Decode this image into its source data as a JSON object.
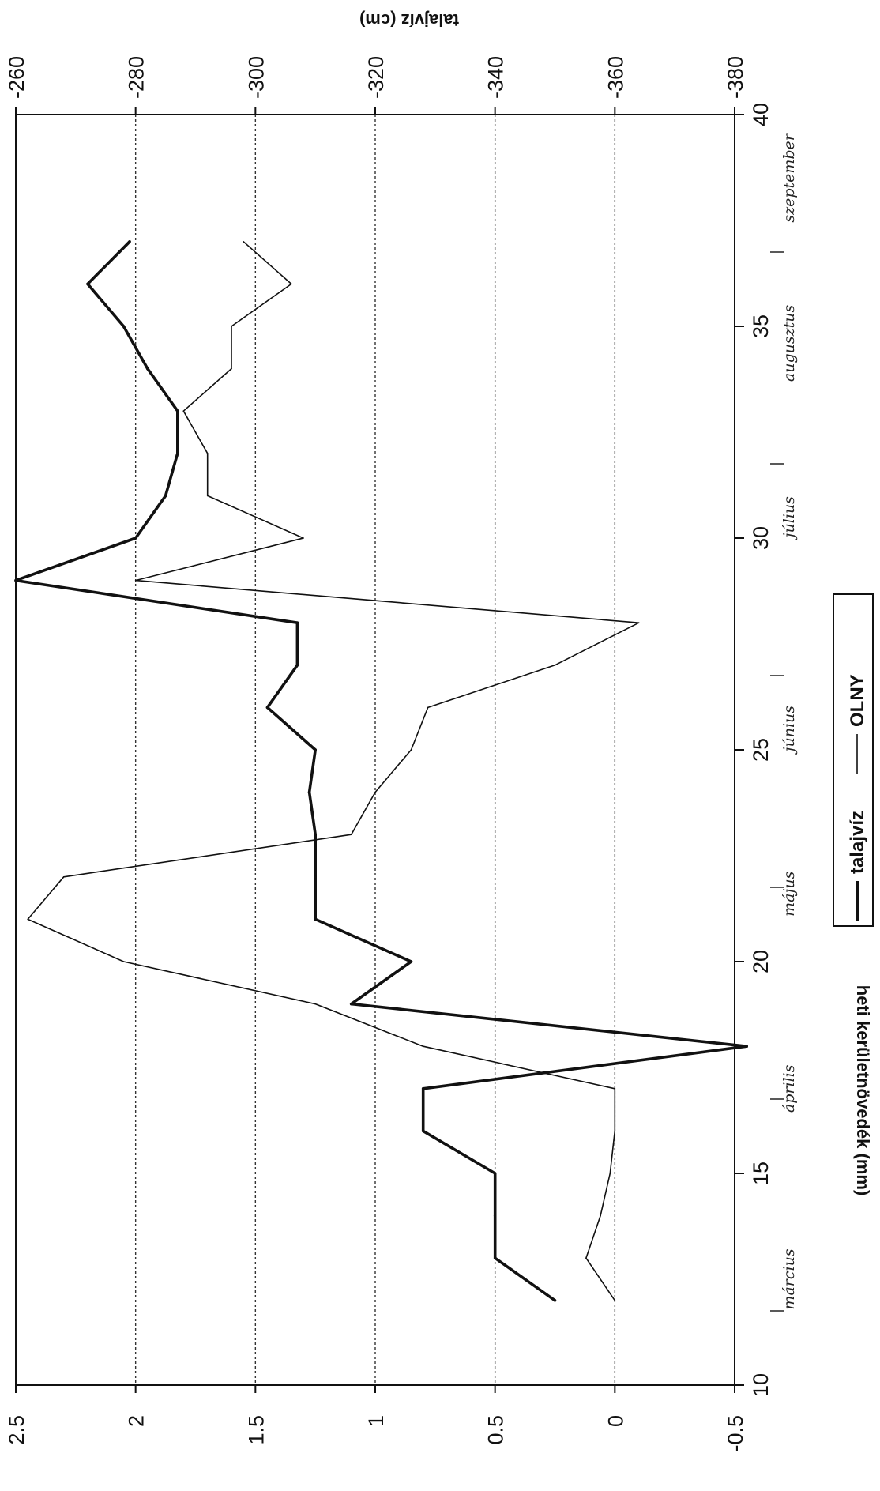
{
  "chart_data": {
    "type": "line",
    "orientation": "rotated-90-clockwise",
    "x": [
      12,
      13,
      14,
      15,
      16,
      17,
      18,
      19,
      20,
      21,
      22,
      23,
      24,
      25,
      26,
      27,
      28,
      29,
      30,
      31,
      32,
      33,
      34,
      35,
      36,
      37
    ],
    "x_ticks": [
      "10",
      "15",
      "20",
      "25",
      "30",
      "35",
      "40"
    ],
    "xlim": [
      10,
      40
    ],
    "months": [
      "március",
      "április",
      "május",
      "június",
      "július",
      "augusztus",
      "szeptember"
    ],
    "ylabel_left": "heti kerületnövedék (mm)",
    "ylabel_right": "talajvíz (cm)",
    "y_left_ticks": [
      "2.5",
      "2",
      "1.5",
      "1",
      "0.5",
      "0",
      "-0.5"
    ],
    "y_left_lim": [
      -0.5,
      2.5
    ],
    "y_right_ticks": [
      "-260",
      "-280",
      "-300",
      "-320",
      "-340",
      "-360",
      "-380"
    ],
    "y_right_lim": [
      -380,
      -260
    ],
    "grid": true,
    "legend_position": "bottom",
    "series": [
      {
        "name": "talajvíz",
        "axis": "right",
        "line_weight": "thick",
        "values": [
          -350,
          -340,
          -340,
          -340,
          -328,
          -328,
          -382,
          -316,
          -326,
          -310,
          -310,
          -310,
          -309,
          -310,
          -302,
          -307,
          -307,
          -260,
          -280,
          -285,
          -287,
          -287,
          -282,
          -278,
          -272,
          -279
        ]
      },
      {
        "name": "OLNY",
        "axis": "left",
        "line_weight": "thin",
        "values": [
          0.0,
          0.12,
          0.06,
          0.02,
          0.0,
          0.0,
          0.8,
          1.25,
          2.05,
          2.45,
          2.3,
          1.1,
          1.0,
          0.85,
          0.78,
          0.25,
          -0.1,
          2.0,
          1.3,
          1.7,
          1.7,
          1.8,
          1.6,
          1.6,
          1.35,
          1.55
        ]
      }
    ]
  }
}
